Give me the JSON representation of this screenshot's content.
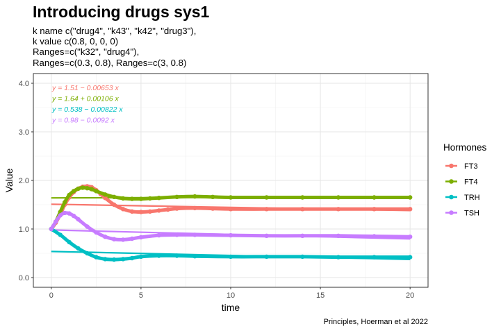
{
  "chart_data": {
    "type": "line",
    "title": "Introducing drugs sys1",
    "subtitle_lines": [
      "k name c(\"drug4\", \"k43\", \"k42\", \"drug3\"),",
      "k value c(0.8, 0, 0, 0)",
      "Ranges=c(\"k32\", \"drug4\"),",
      "Ranges=c(0.3, 0.8), Ranges=c(3, 0.8)"
    ],
    "caption": "Principles, Hoerman et al 2022",
    "xlabel": "time",
    "ylabel": "Value",
    "xlim": [
      -1,
      21
    ],
    "ylim": [
      -0.2,
      4.2
    ],
    "x_ticks": [
      0,
      5,
      10,
      15,
      20
    ],
    "x_tick_labels": [
      "0",
      "5",
      "10",
      "15",
      "20"
    ],
    "y_ticks": [
      0,
      1,
      2,
      3,
      4
    ],
    "y_tick_labels": [
      "0.0",
      "1.0",
      "2.0",
      "3.0",
      "4.0"
    ],
    "grid": true,
    "legend": {
      "title": "Hormones",
      "position": "right"
    },
    "series": [
      {
        "name": "FT3",
        "color": "#F8766D",
        "x": [
          0,
          0.25,
          0.5,
          0.75,
          1.0,
          1.25,
          1.5,
          1.75,
          2.0,
          2.25,
          2.5,
          2.75,
          3.0,
          3.5,
          4.0,
          4.5,
          5.0,
          5.5,
          6.0,
          6.5,
          7.0,
          8.0,
          9.0,
          10,
          12,
          14,
          16,
          18,
          20
        ],
        "y": [
          1.0,
          1.13,
          1.3,
          1.5,
          1.65,
          1.76,
          1.83,
          1.87,
          1.88,
          1.86,
          1.8,
          1.72,
          1.64,
          1.5,
          1.41,
          1.36,
          1.35,
          1.36,
          1.38,
          1.4,
          1.42,
          1.43,
          1.42,
          1.41,
          1.41,
          1.41,
          1.41,
          1.41,
          1.41
        ]
      },
      {
        "name": "FT4",
        "color": "#7CAE00",
        "x": [
          0,
          0.25,
          0.5,
          0.75,
          1.0,
          1.25,
          1.5,
          1.75,
          2.0,
          2.25,
          2.5,
          3.0,
          3.5,
          4.0,
          4.5,
          5.0,
          5.5,
          6.0,
          7.0,
          8.0,
          9.0,
          10,
          12,
          14,
          16,
          18,
          20
        ],
        "y": [
          1.0,
          1.15,
          1.35,
          1.55,
          1.7,
          1.78,
          1.83,
          1.85,
          1.84,
          1.82,
          1.78,
          1.71,
          1.66,
          1.63,
          1.62,
          1.62,
          1.63,
          1.64,
          1.66,
          1.67,
          1.66,
          1.65,
          1.65,
          1.65,
          1.65,
          1.65,
          1.65
        ]
      },
      {
        "name": "TRH",
        "color": "#00BFC4",
        "x": [
          0,
          0.5,
          1.0,
          1.5,
          2.0,
          2.5,
          3.0,
          3.5,
          4.0,
          4.5,
          5.0,
          6.0,
          7.0,
          8.0,
          10,
          12,
          14,
          16,
          18,
          20
        ],
        "y": [
          1.0,
          0.88,
          0.73,
          0.6,
          0.5,
          0.42,
          0.38,
          0.37,
          0.38,
          0.4,
          0.43,
          0.45,
          0.45,
          0.44,
          0.43,
          0.43,
          0.43,
          0.42,
          0.42,
          0.42
        ]
      },
      {
        "name": "TSH",
        "color": "#C77CFF",
        "x": [
          0,
          0.25,
          0.5,
          0.75,
          1.0,
          1.25,
          1.5,
          2.0,
          2.5,
          3.0,
          3.5,
          4.0,
          4.5,
          5.0,
          6.0,
          7.0,
          8.0,
          10,
          12,
          14,
          16,
          18,
          20
        ],
        "y": [
          1.0,
          1.15,
          1.28,
          1.33,
          1.32,
          1.27,
          1.2,
          1.05,
          0.93,
          0.84,
          0.79,
          0.78,
          0.8,
          0.83,
          0.87,
          0.88,
          0.88,
          0.87,
          0.86,
          0.86,
          0.86,
          0.85,
          0.84
        ]
      }
    ],
    "fits": [
      {
        "series": "FT3",
        "color": "#F8766D",
        "intercept": 1.51,
        "slope": -0.00653,
        "label": "y = 1.51 − 0.00653 x"
      },
      {
        "series": "FT4",
        "color": "#7CAE00",
        "intercept": 1.64,
        "slope": 0.00106,
        "label": "y = 1.64 + 0.00106 x"
      },
      {
        "series": "TRH",
        "color": "#00BFC4",
        "intercept": 0.538,
        "slope": -0.00822,
        "label": "y = 0.538 − 0.00822 x"
      },
      {
        "series": "TSH",
        "color": "#C77CFF",
        "intercept": 0.98,
        "slope": -0.0092,
        "label": "y = 0.98 − 0.0092 x"
      }
    ]
  }
}
